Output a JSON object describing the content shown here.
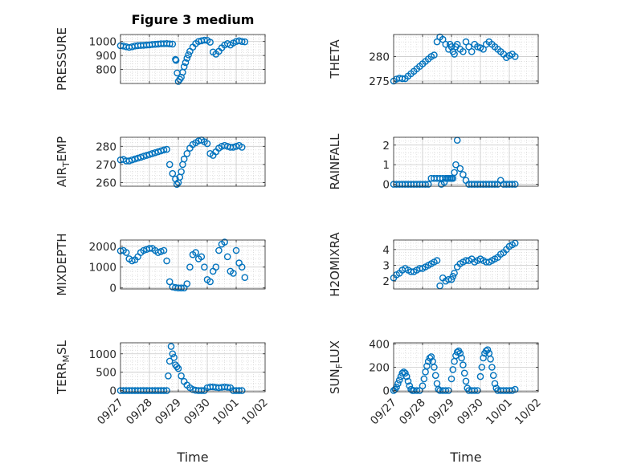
{
  "figure_title": "Figure 3 medium",
  "colors": {
    "marker": "#0072BD",
    "axis": "#262626",
    "grid": "#d0d0d0",
    "background": "#ffffff"
  },
  "chart_data": [
    {
      "type": "scatter",
      "marker": "o",
      "grid": true,
      "title": "Figure 3 medium",
      "ylabel": "PRESSURE",
      "xlim": [
        "09/27",
        "10/02"
      ],
      "ylim": [
        700,
        1050
      ],
      "yticks": [
        800,
        900,
        1000
      ],
      "xticks": [
        "09/27",
        "09/28",
        "09/29",
        "09/30",
        "10/01",
        "10/02"
      ],
      "x_labels_visible": false,
      "x": [
        0,
        0.1,
        0.2,
        0.3,
        0.4,
        0.5,
        0.6,
        0.7,
        0.8,
        0.9,
        1.0,
        1.1,
        1.2,
        1.3,
        1.4,
        1.5,
        1.6,
        1.7,
        1.8,
        1.9,
        1.92,
        1.96,
        2.0,
        2.05,
        2.1,
        2.15,
        2.2,
        2.25,
        2.3,
        2.35,
        2.4,
        2.5,
        2.6,
        2.7,
        2.8,
        2.9,
        3.0,
        3.1,
        3.2,
        3.3,
        3.4,
        3.5,
        3.6,
        3.7,
        3.8,
        3.9,
        4.0,
        4.1,
        4.2,
        4.3
      ],
      "y": [
        970,
        968,
        962,
        958,
        962,
        968,
        971,
        972,
        973,
        975,
        976,
        979,
        980,
        982,
        984,
        984,
        985,
        983,
        982,
        872,
        865,
        775,
        715,
        730,
        745,
        780,
        820,
        850,
        880,
        905,
        930,
        960,
        985,
        1000,
        1005,
        1010,
        1008,
        995,
        925,
        910,
        930,
        955,
        975,
        985,
        975,
        990,
        1000,
        1005,
        1000,
        998
      ]
    },
    {
      "type": "scatter",
      "marker": "o",
      "grid": true,
      "ylabel": "THETA",
      "xlim": [
        "09/27",
        "10/02"
      ],
      "ylim": [
        274.5,
        284.5
      ],
      "yticks": [
        275,
        280
      ],
      "xticks": [
        "09/27",
        "09/28",
        "09/29",
        "09/30",
        "10/01",
        "10/02"
      ],
      "x_labels_visible": false,
      "x": [
        0,
        0.1,
        0.2,
        0.3,
        0.4,
        0.5,
        0.6,
        0.7,
        0.8,
        0.9,
        1.0,
        1.1,
        1.2,
        1.3,
        1.4,
        1.5,
        1.6,
        1.7,
        1.8,
        1.9,
        1.95,
        2.0,
        2.05,
        2.1,
        2.15,
        2.2,
        2.3,
        2.4,
        2.5,
        2.6,
        2.7,
        2.8,
        2.9,
        3.0,
        3.1,
        3.2,
        3.3,
        3.4,
        3.5,
        3.6,
        3.7,
        3.8,
        3.9,
        4.0,
        4.1,
        4.2
      ],
      "y": [
        275.0,
        275.4,
        275.6,
        275.5,
        275.5,
        276.0,
        276.5,
        277.0,
        277.5,
        278.0,
        278.5,
        279.0,
        279.5,
        280.0,
        280.3,
        283.0,
        284.0,
        283.5,
        282.5,
        281.5,
        282.5,
        282.0,
        281.0,
        280.5,
        282.0,
        282.5,
        281.5,
        281.0,
        283.0,
        282.0,
        281.0,
        282.5,
        282.0,
        281.8,
        281.5,
        282.5,
        283.0,
        282.5,
        282.0,
        281.5,
        281.0,
        280.5,
        279.8,
        280.2,
        280.5,
        280.0
      ]
    },
    {
      "type": "scatter",
      "marker": "o",
      "grid": true,
      "ylabel": "AIR_TEMP",
      "xlim": [
        "09/27",
        "10/02"
      ],
      "ylim": [
        258,
        285
      ],
      "yticks": [
        260,
        270,
        280
      ],
      "xticks": [
        "09/27",
        "09/28",
        "09/29",
        "09/30",
        "10/01",
        "10/02"
      ],
      "x_labels_visible": false,
      "x": [
        0,
        0.1,
        0.2,
        0.3,
        0.4,
        0.5,
        0.6,
        0.7,
        0.8,
        0.9,
        1.0,
        1.1,
        1.2,
        1.3,
        1.4,
        1.5,
        1.6,
        1.7,
        1.8,
        1.9,
        1.95,
        2.0,
        2.05,
        2.1,
        2.15,
        2.2,
        2.3,
        2.4,
        2.5,
        2.6,
        2.7,
        2.8,
        2.9,
        3.0,
        3.1,
        3.2,
        3.3,
        3.4,
        3.5,
        3.6,
        3.7,
        3.8,
        3.9,
        4.0,
        4.1,
        4.2
      ],
      "y": [
        272.5,
        272.8,
        272.0,
        272.0,
        272.5,
        273.0,
        273.5,
        274.0,
        274.5,
        275.0,
        275.5,
        276.0,
        276.5,
        277.0,
        277.5,
        278.0,
        278.3,
        270.0,
        265.0,
        262.0,
        259.0,
        260.0,
        263.0,
        266.0,
        270.0,
        273.0,
        276.0,
        279.0,
        281.0,
        282.0,
        283.0,
        283.5,
        282.5,
        281.5,
        276.0,
        275.0,
        277.0,
        279.0,
        280.0,
        280.5,
        280.0,
        279.5,
        279.5,
        280.0,
        280.5,
        279.5
      ]
    },
    {
      "type": "scatter",
      "marker": "o",
      "grid": true,
      "ylabel": "RAINFALL",
      "xlim": [
        "09/27",
        "10/02"
      ],
      "ylim": [
        -0.1,
        2.4
      ],
      "yticks": [
        0,
        1,
        2
      ],
      "xticks": [
        "09/27",
        "09/28",
        "09/29",
        "09/30",
        "10/01",
        "10/02"
      ],
      "x_labels_visible": false,
      "x": [
        0,
        0.1,
        0.2,
        0.3,
        0.4,
        0.5,
        0.6,
        0.7,
        0.8,
        0.9,
        1.0,
        1.1,
        1.2,
        1.3,
        1.4,
        1.5,
        1.6,
        1.65,
        1.7,
        1.75,
        1.8,
        1.85,
        1.9,
        1.95,
        2.0,
        2.05,
        2.1,
        2.15,
        2.2,
        2.3,
        2.4,
        2.5,
        2.6,
        2.7,
        2.8,
        2.9,
        3.0,
        3.1,
        3.2,
        3.3,
        3.4,
        3.5,
        3.6,
        3.7,
        3.8,
        3.9,
        4.0,
        4.1,
        4.2
      ],
      "y": [
        0,
        0,
        0,
        0,
        0,
        0,
        0,
        0,
        0,
        0,
        0,
        0,
        0,
        0.3,
        0.3,
        0.3,
        0.3,
        0,
        0.3,
        0.1,
        0.3,
        0.3,
        0.3,
        0.3,
        0.3,
        0.3,
        0.6,
        1.0,
        2.25,
        0.8,
        0.5,
        0.2,
        0,
        0,
        0,
        0,
        0,
        0,
        0,
        0,
        0,
        0,
        0,
        0.2,
        0,
        0,
        0,
        0,
        0
      ]
    },
    {
      "type": "scatter",
      "marker": "o",
      "grid": true,
      "ylabel": "MIXDEPTH",
      "xlim": [
        "09/27",
        "10/02"
      ],
      "ylim": [
        -50,
        2300
      ],
      "yticks": [
        0,
        1000,
        2000
      ],
      "xticks": [
        "09/27",
        "09/28",
        "09/29",
        "09/30",
        "10/01",
        "10/02"
      ],
      "x_labels_visible": false,
      "x": [
        0,
        0.1,
        0.2,
        0.3,
        0.4,
        0.5,
        0.6,
        0.7,
        0.8,
        0.9,
        1.0,
        1.1,
        1.2,
        1.3,
        1.4,
        1.5,
        1.6,
        1.7,
        1.8,
        1.9,
        2.0,
        2.1,
        2.2,
        2.3,
        2.4,
        2.5,
        2.6,
        2.7,
        2.8,
        2.9,
        3.0,
        3.1,
        3.2,
        3.3,
        3.4,
        3.5,
        3.6,
        3.7,
        3.8,
        3.9,
        4.0,
        4.1,
        4.2,
        4.3
      ],
      "y": [
        1780,
        1800,
        1700,
        1400,
        1300,
        1350,
        1500,
        1700,
        1800,
        1850,
        1900,
        1900,
        1800,
        1700,
        1750,
        1800,
        1300,
        300,
        50,
        20,
        0,
        0,
        0,
        200,
        1000,
        1600,
        1700,
        1400,
        1500,
        1000,
        400,
        300,
        800,
        1000,
        1800,
        2100,
        2200,
        1500,
        800,
        700,
        1800,
        1200,
        1000,
        500
      ]
    },
    {
      "type": "scatter",
      "marker": "o",
      "grid": true,
      "ylabel": "H2OMIXRA",
      "xlim": [
        "09/27",
        "10/02"
      ],
      "ylim": [
        1.5,
        4.6
      ],
      "yticks": [
        2,
        3,
        4
      ],
      "xticks": [
        "09/27",
        "09/28",
        "09/29",
        "09/30",
        "10/01",
        "10/02"
      ],
      "x_labels_visible": false,
      "x": [
        0,
        0.1,
        0.2,
        0.3,
        0.4,
        0.5,
        0.6,
        0.7,
        0.8,
        0.9,
        1.0,
        1.1,
        1.2,
        1.3,
        1.4,
        1.5,
        1.6,
        1.7,
        1.8,
        1.9,
        2.0,
        2.05,
        2.1,
        2.2,
        2.3,
        2.4,
        2.5,
        2.6,
        2.7,
        2.8,
        2.9,
        3.0,
        3.1,
        3.2,
        3.3,
        3.4,
        3.5,
        3.6,
        3.7,
        3.8,
        3.9,
        4.0,
        4.1,
        4.2
      ],
      "y": [
        2.2,
        2.4,
        2.5,
        2.7,
        2.8,
        2.7,
        2.6,
        2.6,
        2.7,
        2.8,
        2.8,
        2.9,
        3.0,
        3.1,
        3.2,
        3.3,
        1.7,
        2.2,
        2.0,
        2.1,
        2.1,
        2.3,
        2.5,
        2.9,
        3.1,
        3.2,
        3.3,
        3.3,
        3.4,
        3.2,
        3.3,
        3.4,
        3.3,
        3.2,
        3.2,
        3.3,
        3.4,
        3.5,
        3.7,
        3.8,
        4.0,
        4.2,
        4.3,
        4.4
      ]
    },
    {
      "type": "scatter",
      "marker": "o",
      "grid": true,
      "ylabel": "TERR_MSL",
      "xlabel": "Time",
      "xlim": [
        "09/27",
        "10/02"
      ],
      "ylim": [
        -30,
        1300
      ],
      "yticks": [
        0,
        500,
        1000
      ],
      "xticks": [
        "09/27",
        "09/28",
        "09/29",
        "09/30",
        "10/01",
        "10/02"
      ],
      "x_labels_visible": true,
      "x": [
        0,
        0.1,
        0.2,
        0.3,
        0.4,
        0.5,
        0.6,
        0.7,
        0.8,
        0.9,
        1.0,
        1.1,
        1.2,
        1.3,
        1.4,
        1.5,
        1.6,
        1.65,
        1.7,
        1.75,
        1.8,
        1.85,
        1.9,
        1.95,
        2.0,
        2.1,
        2.2,
        2.3,
        2.4,
        2.5,
        2.6,
        2.7,
        2.8,
        2.9,
        3.0,
        3.1,
        3.2,
        3.3,
        3.4,
        3.5,
        3.6,
        3.7,
        3.8,
        3.9,
        4.0,
        4.1,
        4.2
      ],
      "y": [
        0,
        0,
        0,
        0,
        0,
        0,
        0,
        0,
        0,
        0,
        0,
        0,
        0,
        0,
        0,
        0,
        0,
        400,
        800,
        1200,
        1000,
        900,
        700,
        650,
        600,
        400,
        250,
        150,
        80,
        30,
        10,
        0,
        0,
        0,
        80,
        100,
        100,
        90,
        80,
        90,
        100,
        90,
        80,
        0,
        0,
        0,
        0
      ]
    },
    {
      "type": "scatter",
      "marker": "o",
      "grid": true,
      "ylabel": "SUN_FLUX",
      "xlabel": "Time",
      "xlim": [
        "09/27",
        "10/02"
      ],
      "ylim": [
        -10,
        410
      ],
      "yticks": [
        0,
        200,
        400
      ],
      "xticks": [
        "09/27",
        "09/28",
        "09/29",
        "09/30",
        "10/01",
        "10/02"
      ],
      "x_labels_visible": true,
      "x": [
        0.0,
        0.05,
        0.1,
        0.15,
        0.2,
        0.25,
        0.3,
        0.35,
        0.4,
        0.45,
        0.5,
        0.55,
        0.6,
        0.65,
        0.7,
        0.8,
        0.9,
        1.0,
        1.05,
        1.1,
        1.15,
        1.2,
        1.25,
        1.3,
        1.35,
        1.4,
        1.45,
        1.5,
        1.55,
        1.6,
        1.7,
        1.8,
        1.9,
        2.0,
        2.05,
        2.1,
        2.15,
        2.2,
        2.25,
        2.3,
        2.35,
        2.4,
        2.45,
        2.5,
        2.55,
        2.6,
        2.7,
        2.8,
        2.9,
        3.0,
        3.05,
        3.1,
        3.15,
        3.2,
        3.25,
        3.3,
        3.35,
        3.4,
        3.45,
        3.5,
        3.55,
        3.6,
        3.7,
        3.8,
        3.9,
        4.0,
        4.1,
        4.2
      ],
      "y": [
        0,
        10,
        30,
        60,
        90,
        120,
        150,
        160,
        150,
        120,
        80,
        40,
        10,
        0,
        0,
        0,
        0,
        40,
        100,
        160,
        210,
        250,
        280,
        290,
        250,
        200,
        130,
        60,
        10,
        0,
        0,
        0,
        0,
        100,
        180,
        250,
        300,
        330,
        340,
        320,
        280,
        220,
        150,
        80,
        20,
        0,
        0,
        0,
        0,
        120,
        200,
        280,
        320,
        340,
        350,
        320,
        270,
        200,
        130,
        60,
        20,
        0,
        0,
        0,
        0,
        0,
        0,
        10
      ]
    }
  ]
}
